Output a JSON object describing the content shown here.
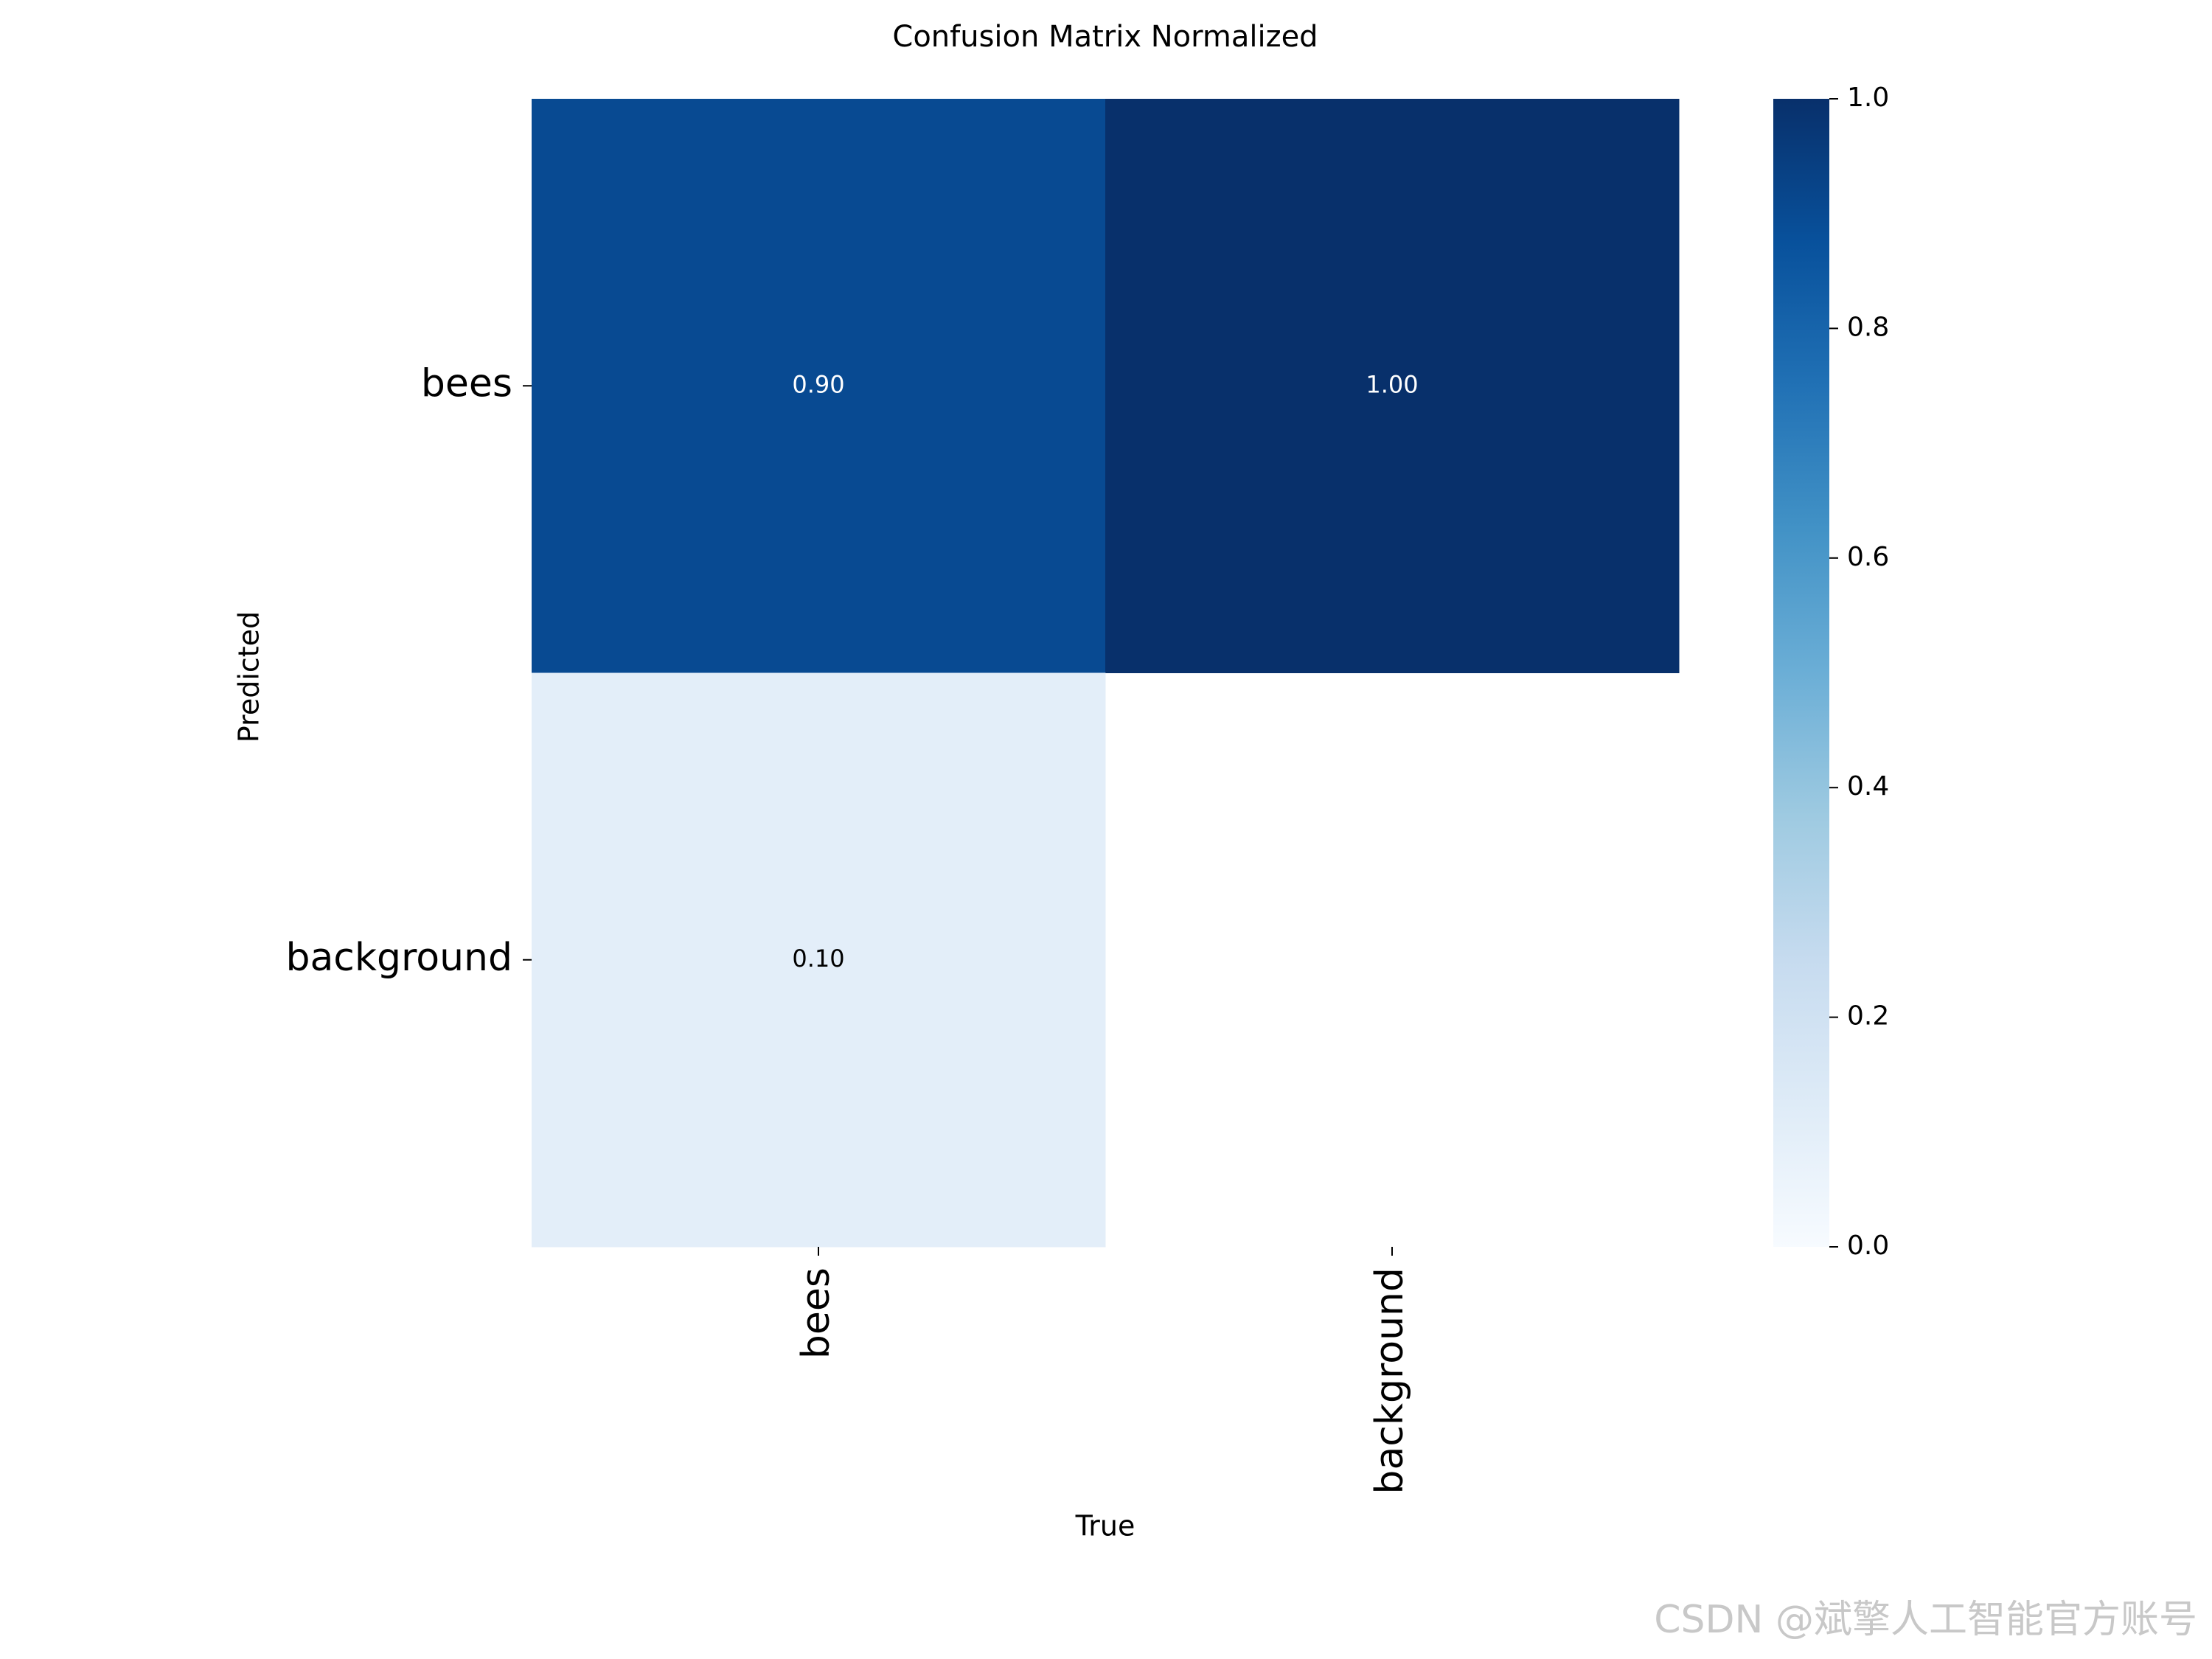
{
  "chart_data": {
    "type": "heatmap",
    "title": "Confusion Matrix Normalized",
    "xlabel": "True",
    "ylabel": "Predicted",
    "x_categories": [
      "bees",
      "background"
    ],
    "y_categories": [
      "bees",
      "background"
    ],
    "values": [
      [
        0.9,
        1.0
      ],
      [
        0.1,
        null
      ]
    ],
    "value_labels": [
      [
        "0.90",
        "1.00"
      ],
      [
        "0.10",
        null
      ]
    ],
    "colormap": "Blues",
    "clim": [
      0,
      1
    ],
    "cticks": [
      {
        "value": 0,
        "label": "0.0"
      },
      {
        "value": 0.2,
        "label": "0.2"
      },
      {
        "value": 0.4,
        "label": "0.4"
      },
      {
        "value": 0.6,
        "label": "0.6"
      },
      {
        "value": 0.8,
        "label": "0.8"
      },
      {
        "value": 1,
        "label": "1.0"
      }
    ],
    "watermark": "CSDN @斌擎人工智能官方账号"
  }
}
